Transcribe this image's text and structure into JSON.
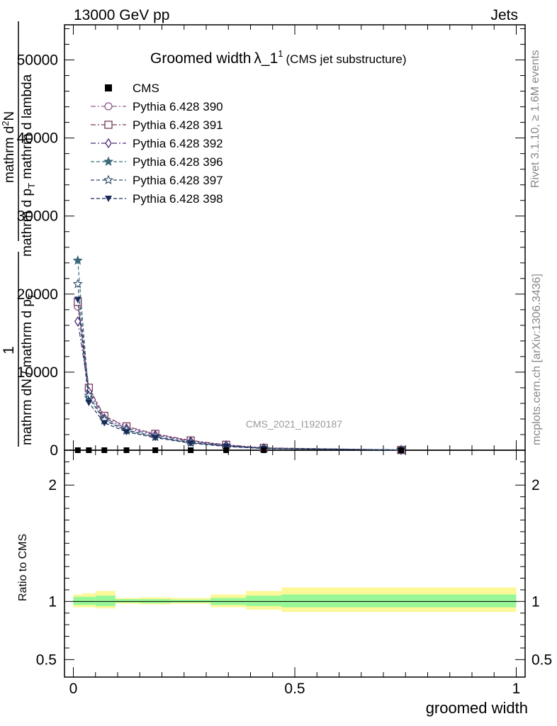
{
  "header": {
    "left": "13000 GeV pp",
    "right": "Jets"
  },
  "side_labels": {
    "rivet": "Rivet 3.1.10, ≥ 1.6M events",
    "mcplots": "mcplots.cern.ch [arXiv:1306.3436]"
  },
  "chart_data": {
    "type": "line",
    "title": "Groomed width",
    "title_symbol": "λ_1",
    "title_sup": "1",
    "subtitle": "(CMS jet substructure)",
    "watermark": "CMS_2021_I1920187",
    "xlabel": "groomed width",
    "ylabel_parts": [
      "1",
      "mathrm dN / mathrm d p_T",
      "mathrm d^2N",
      "mathrm d p_T mathrm d lambda"
    ],
    "ylabel_top": {
      "numerator": "1",
      "denominator": "mathrm dN / mathrm d p",
      "denominator_sub": "T",
      "right_numerator": "mathrm d",
      "right_numerator_sup": "2",
      "right_numerator_tail": "N",
      "right_denominator": "mathrm d p",
      "right_denominator_sub": "T",
      "right_denominator_tail": " mathrm d lambda"
    },
    "ratio_ylabel": "Ratio to CMS",
    "xlim": [
      -0.02,
      1.02
    ],
    "ylim": [
      0,
      54500
    ],
    "ratio_ylim": [
      0.35,
      2.3
    ],
    "x_ticks": [
      {
        "v": 0,
        "label": "0"
      },
      {
        "v": 0.5,
        "label": "0.5"
      },
      {
        "v": 1,
        "label": "1"
      }
    ],
    "y_ticks": [
      {
        "v": 0,
        "label": "0"
      },
      {
        "v": 10000,
        "label": "10000"
      },
      {
        "v": 20000,
        "label": "20000"
      },
      {
        "v": 30000,
        "label": "30000"
      },
      {
        "v": 40000,
        "label": "40000"
      },
      {
        "v": 50000,
        "label": "50000"
      }
    ],
    "ratio_ticks": [
      {
        "v": 0.5,
        "label": "0.5"
      },
      {
        "v": 1,
        "label": "1"
      },
      {
        "v": 2,
        "label": "2"
      }
    ],
    "x": [
      0.01,
      0.035,
      0.07,
      0.12,
      0.185,
      0.265,
      0.345,
      0.43,
      0.74
    ],
    "cms": [
      0,
      0,
      0,
      0,
      0,
      0,
      0,
      0,
      0
    ],
    "series": [
      {
        "name": "Pythia 6.428 390",
        "marker": "circle-open",
        "color": "#8a5a8a",
        "dash": "7,3,2,3",
        "values": [
          18400,
          7800,
          4300,
          3000,
          2050,
          1200,
          650,
          280,
          30
        ]
      },
      {
        "name": "Pythia 6.428 391",
        "marker": "square-open",
        "color": "#7a3a5a",
        "dash": "7,3,2,3",
        "values": [
          19000,
          8000,
          4400,
          3050,
          2100,
          1250,
          700,
          300,
          35
        ]
      },
      {
        "name": "Pythia 6.428 392",
        "marker": "diamond-open",
        "color": "#4a2a7a",
        "dash": "7,3,2,3",
        "values": [
          16500,
          7500,
          4100,
          2800,
          1950,
          1150,
          620,
          270,
          30
        ]
      },
      {
        "name": "Pythia 6.428 396",
        "marker": "star-filled",
        "color": "#3a6a7a",
        "dash": "5,3",
        "values": [
          24300,
          6700,
          3800,
          2500,
          1700,
          950,
          520,
          230,
          25
        ]
      },
      {
        "name": "Pythia 6.428 397",
        "marker": "star-open",
        "color": "#2a4a6a",
        "dash": "5,3",
        "values": [
          21300,
          7000,
          3900,
          2600,
          1750,
          1000,
          560,
          250,
          28
        ]
      },
      {
        "name": "Pythia 6.428 398",
        "marker": "triangle-down-filled",
        "color": "#1a2a5a",
        "dash": "5,3",
        "values": [
          19300,
          6100,
          3500,
          2350,
          1600,
          900,
          480,
          210,
          22
        ]
      }
    ],
    "cms_legend": "CMS",
    "ratio_bands": [
      {
        "x0": 0.0,
        "x1": 0.02,
        "inner": [
          0.97,
          1.04
        ],
        "outer": [
          0.95,
          1.06
        ]
      },
      {
        "x0": 0.02,
        "x1": 0.05,
        "inner": [
          0.97,
          1.04
        ],
        "outer": [
          0.95,
          1.07
        ]
      },
      {
        "x0": 0.05,
        "x1": 0.095,
        "inner": [
          0.96,
          1.05
        ],
        "outer": [
          0.94,
          1.09
        ]
      },
      {
        "x0": 0.095,
        "x1": 0.15,
        "inner": [
          0.99,
          1.02
        ],
        "outer": [
          0.98,
          1.03
        ]
      },
      {
        "x0": 0.15,
        "x1": 0.22,
        "inner": [
          0.985,
          1.02
        ],
        "outer": [
          0.975,
          1.035
        ]
      },
      {
        "x0": 0.22,
        "x1": 0.31,
        "inner": [
          0.99,
          1.015
        ],
        "outer": [
          0.98,
          1.03
        ]
      },
      {
        "x0": 0.31,
        "x1": 0.39,
        "inner": [
          0.97,
          1.03
        ],
        "outer": [
          0.95,
          1.06
        ]
      },
      {
        "x0": 0.39,
        "x1": 0.47,
        "inner": [
          0.96,
          1.05
        ],
        "outer": [
          0.93,
          1.09
        ]
      },
      {
        "x0": 0.47,
        "x1": 1.0,
        "inner": [
          0.95,
          1.06
        ],
        "outer": [
          0.91,
          1.12
        ]
      }
    ],
    "band_colors": {
      "inner": "#98f898",
      "outer": "#fcf898"
    },
    "grid": false,
    "legend_position": "top-left"
  }
}
